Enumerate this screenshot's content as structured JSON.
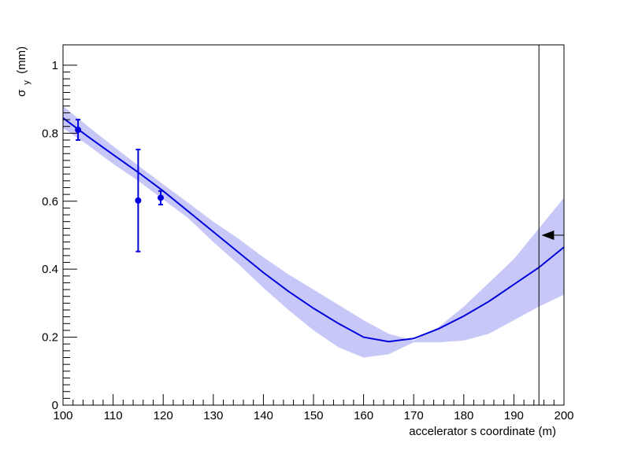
{
  "chart_data": {
    "type": "line",
    "xlabel": "accelerator s coordinate (m)",
    "ylabel": "σ",
    "ylabel_sub": "y",
    "ylabel_unit": "(mm)",
    "xlim": [
      100,
      200
    ],
    "ylim": [
      0,
      1.06
    ],
    "x_ticks": [
      100,
      110,
      120,
      130,
      140,
      150,
      160,
      170,
      180,
      190,
      200
    ],
    "y_ticks": [
      0,
      0.2,
      0.4,
      0.6,
      0.8,
      1
    ],
    "y_tick_labels": [
      "0",
      "0.2",
      "0.4",
      "0.6",
      "0.8",
      "1"
    ],
    "grid": false,
    "colors": {
      "line": "#0000dd",
      "band": "#c8c8f8",
      "points": "#0000dd",
      "marker": "#000000"
    },
    "series": [
      {
        "type": "line",
        "x": [
          100,
          105,
          110,
          115,
          120,
          125,
          130,
          135,
          140,
          145,
          150,
          155,
          160,
          165,
          170,
          175,
          180,
          185,
          190,
          195,
          200
        ],
        "y": [
          0.845,
          0.79,
          0.737,
          0.685,
          0.63,
          0.57,
          0.51,
          0.45,
          0.39,
          0.335,
          0.285,
          0.24,
          0.2,
          0.187,
          0.196,
          0.225,
          0.262,
          0.305,
          0.355,
          0.405,
          0.465
        ]
      },
      {
        "type": "band",
        "x": [
          100,
          105,
          110,
          115,
          120,
          125,
          130,
          135,
          140,
          145,
          150,
          155,
          160,
          165,
          170,
          175,
          180,
          185,
          190,
          195,
          200
        ],
        "upper": [
          0.88,
          0.82,
          0.762,
          0.705,
          0.65,
          0.595,
          0.54,
          0.49,
          0.435,
          0.385,
          0.34,
          0.295,
          0.25,
          0.21,
          0.19,
          0.23,
          0.29,
          0.36,
          0.43,
          0.52,
          0.61
        ],
        "lower": [
          0.815,
          0.765,
          0.71,
          0.66,
          0.605,
          0.55,
          0.48,
          0.415,
          0.345,
          0.28,
          0.22,
          0.17,
          0.14,
          0.15,
          0.185,
          0.185,
          0.19,
          0.21,
          0.25,
          0.29,
          0.325
        ]
      },
      {
        "type": "scatter",
        "x": [
          103,
          115,
          119.5
        ],
        "y": [
          0.81,
          0.602,
          0.61
        ],
        "yerr": [
          0.03,
          0.15,
          0.02
        ]
      }
    ],
    "annotations": [
      {
        "type": "vline",
        "x": 195
      },
      {
        "type": "arrow",
        "x_from": 200,
        "x_to": 195.5,
        "y": 0.5
      }
    ]
  }
}
